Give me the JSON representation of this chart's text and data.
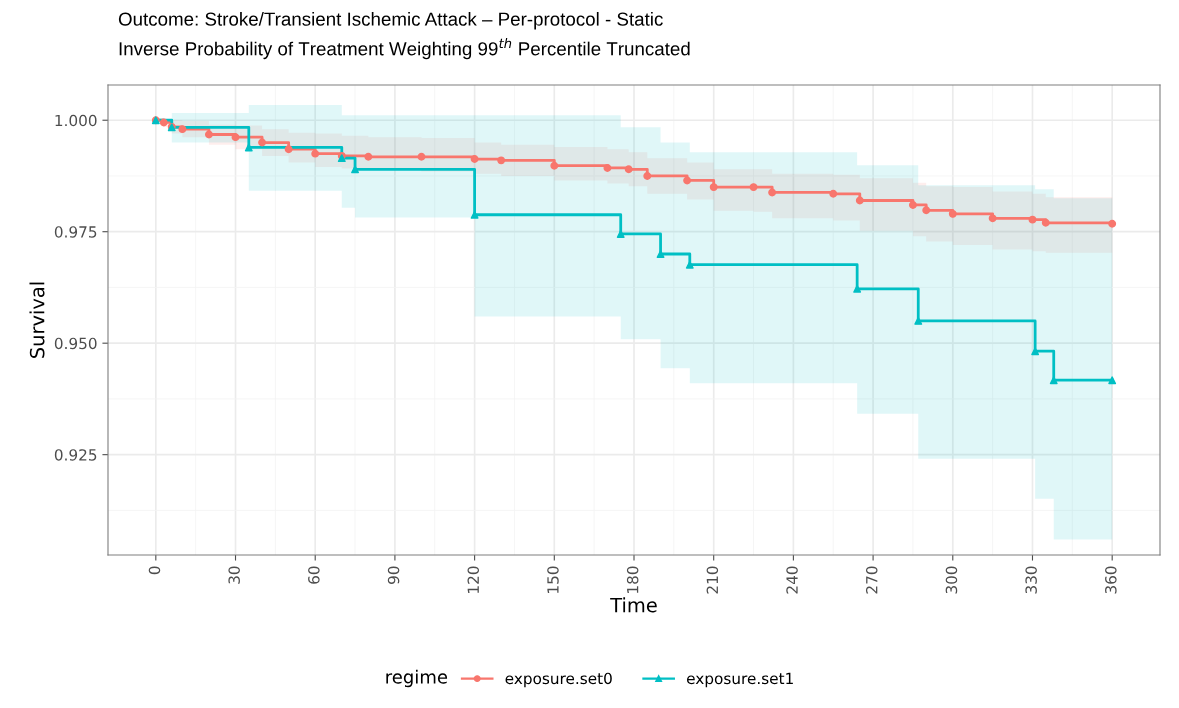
{
  "chart_data": {
    "type": "step",
    "title": "Outcome: Stroke/Transient Ischemic Attack – Per-protocol - Static\nInverse Probability of Treatment Weighting 99$^{th}$ Percentile Truncated",
    "xlabel": "Time",
    "ylabel": "Survival",
    "legend_title": "regime",
    "legend": "bottom",
    "grid": true,
    "xlim": [
      -18,
      378
    ],
    "ylim": [
      0.9025,
      1.0079
    ],
    "xticks": [
      0,
      30,
      60,
      90,
      120,
      150,
      180,
      210,
      240,
      270,
      300,
      330,
      360
    ],
    "yticks": [
      {
        "value": 0.925,
        "label": "0.925"
      },
      {
        "value": 0.95,
        "label": "0.950"
      },
      {
        "value": 0.975,
        "label": "0.975"
      },
      {
        "value": 1.0,
        "label": "1.000"
      }
    ],
    "series": [
      {
        "name": "exposure.set0",
        "color": "#f8766d",
        "marker": "circle",
        "x": [
          0,
          3,
          6,
          10,
          20,
          30,
          40,
          50,
          60,
          70,
          80,
          100,
          120,
          130,
          150,
          170,
          178,
          185,
          200,
          210,
          225,
          232,
          255,
          265,
          285,
          290,
          300,
          315,
          330,
          335,
          360
        ],
        "values": [
          1.0,
          0.9995,
          0.9985,
          0.998,
          0.9968,
          0.9962,
          0.995,
          0.9935,
          0.9925,
          0.992,
          0.9918,
          0.9918,
          0.9913,
          0.991,
          0.9898,
          0.9893,
          0.989,
          0.9875,
          0.9865,
          0.985,
          0.985,
          0.9838,
          0.9835,
          0.982,
          0.981,
          0.9798,
          0.979,
          0.978,
          0.9777,
          0.977,
          0.9768
        ],
        "lower": [
          1.0,
          0.9985,
          0.997,
          0.9962,
          0.9945,
          0.9935,
          0.992,
          0.9905,
          0.9895,
          0.9892,
          0.989,
          0.9885,
          0.988,
          0.9875,
          0.9865,
          0.9858,
          0.9852,
          0.9835,
          0.9822,
          0.9797,
          0.9795,
          0.978,
          0.9775,
          0.9752,
          0.974,
          0.9728,
          0.972,
          0.971,
          0.9706,
          0.9703,
          0.9703
        ],
        "upper": [
          1.0,
          1.0003,
          1.0,
          0.9998,
          0.999,
          0.9988,
          0.998,
          0.9972,
          0.997,
          0.9965,
          0.9962,
          0.996,
          0.995,
          0.9945,
          0.994,
          0.9935,
          0.9928,
          0.9915,
          0.9905,
          0.989,
          0.989,
          0.988,
          0.9878,
          0.987,
          0.986,
          0.9852,
          0.985,
          0.984,
          0.9835,
          0.9827,
          0.9827
        ]
      },
      {
        "name": "exposure.set1",
        "color": "#00bfc4",
        "marker": "triangle",
        "x": [
          0,
          6,
          35,
          70,
          75,
          120,
          175,
          190,
          201,
          264,
          287,
          331,
          338,
          360
        ],
        "values": [
          1.0,
          0.9984,
          0.9939,
          0.9915,
          0.989,
          0.9788,
          0.9745,
          0.97,
          0.9676,
          0.9622,
          0.955,
          0.9482,
          0.9417,
          0.9417
        ],
        "lower": [
          1.0,
          0.995,
          0.9842,
          0.9804,
          0.9782,
          0.956,
          0.9509,
          0.9444,
          0.941,
          0.9342,
          0.9241,
          0.9151,
          0.906,
          0.906
        ],
        "upper": [
          1.0,
          1.0016,
          1.0034,
          1.0011,
          1.0011,
          1.0011,
          0.9984,
          0.995,
          0.9928,
          0.9899,
          0.9854,
          0.9845,
          0.9825,
          0.9825
        ]
      }
    ]
  }
}
